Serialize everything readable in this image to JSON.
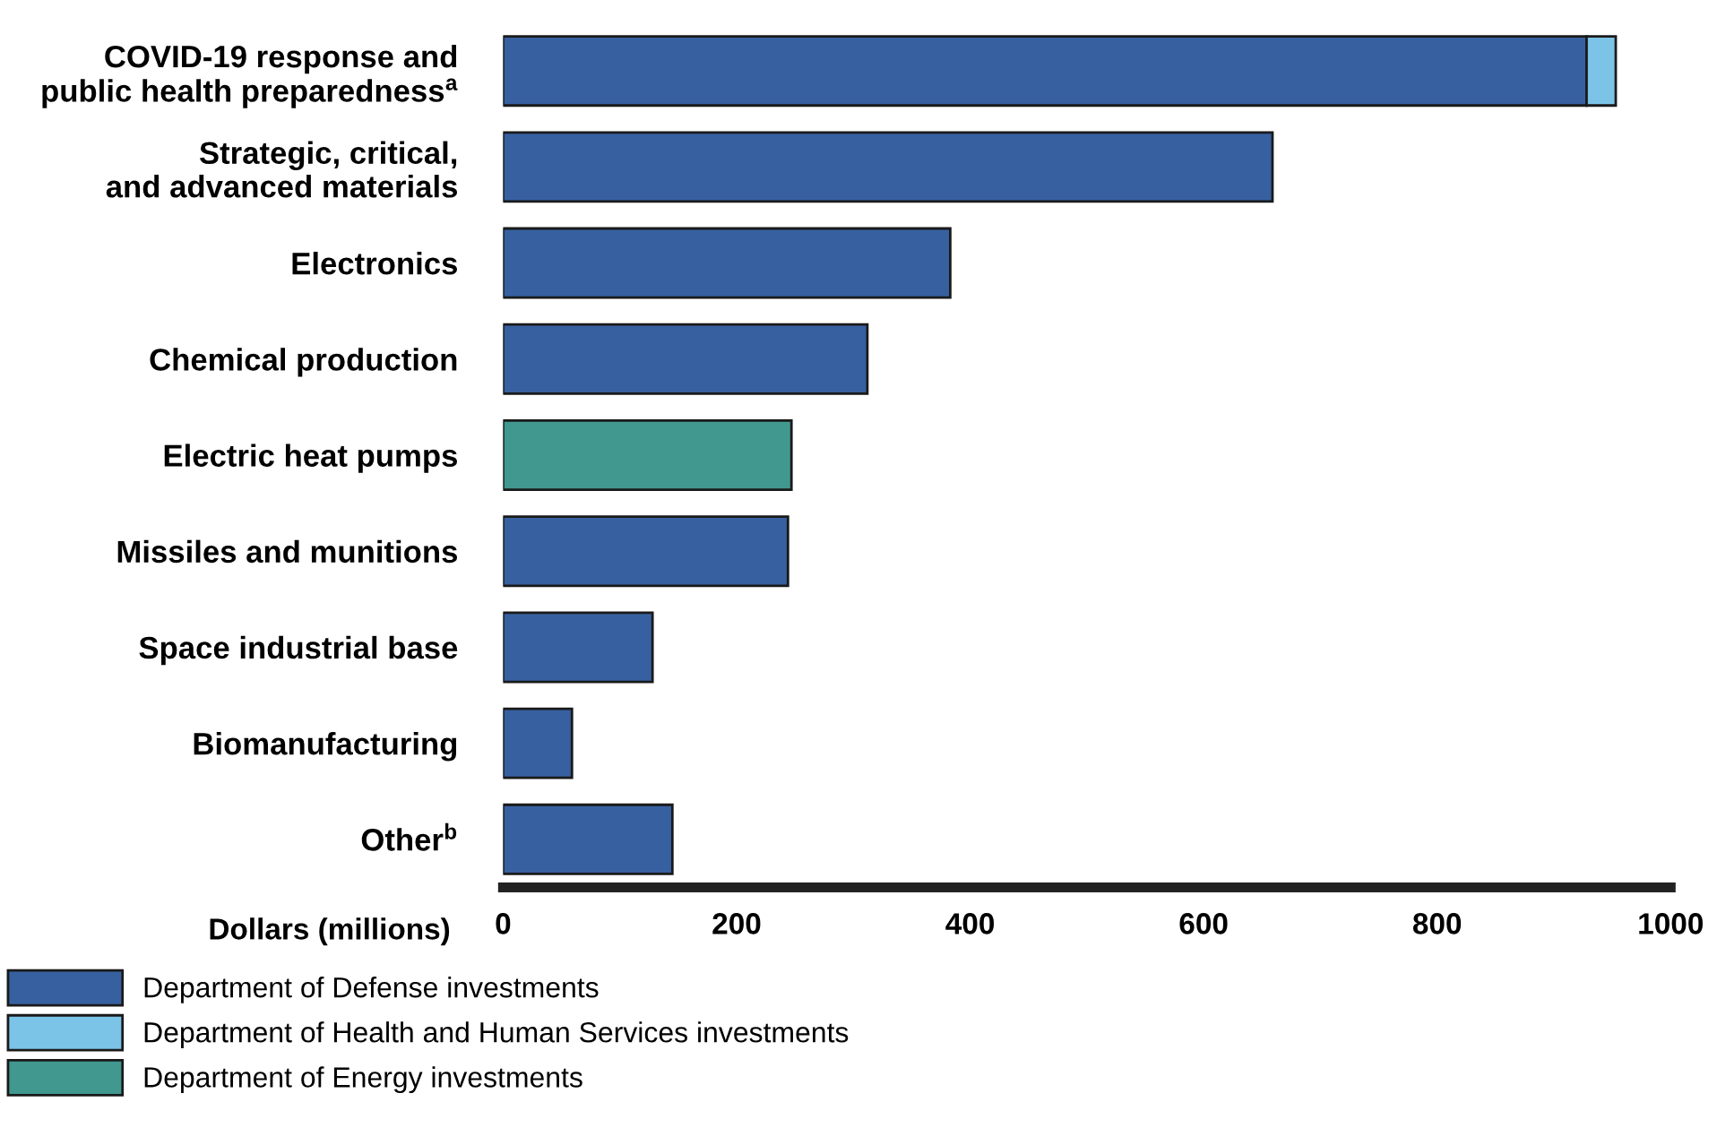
{
  "chart_data": {
    "type": "bar",
    "orientation": "horizontal",
    "stacked": true,
    "categories": [
      "COVID-19 response and\npublic health preparedness$^{a}$",
      "Strategic, critical,\nand advanced materials",
      "Electronics",
      "Chemical production",
      "Electric heat pumps",
      "Missiles and munitions",
      "Space industrial base",
      "Biomanufacturing",
      "Other$^{b}$"
    ],
    "series": [
      {
        "name": "Department of Defense investments",
        "color": "#3760a0",
        "values": [
          928,
          659,
          383,
          312,
          null,
          244,
          128,
          59,
          145
        ]
      },
      {
        "name": "Department of Health and Human Services investments",
        "color": "#7cc3e8",
        "values": [
          25,
          null,
          null,
          null,
          null,
          null,
          null,
          null,
          null
        ]
      },
      {
        "name": "Department of Energy investments",
        "color": "#40988f",
        "values": [
          null,
          null,
          null,
          null,
          247,
          null,
          null,
          null,
          null
        ]
      }
    ],
    "xlabel": "Dollars (millions)",
    "xlim": [
      0,
      1000
    ],
    "xticks": [
      0,
      200,
      400,
      600,
      800,
      1000
    ],
    "grid": false,
    "legend": "bottom left"
  }
}
